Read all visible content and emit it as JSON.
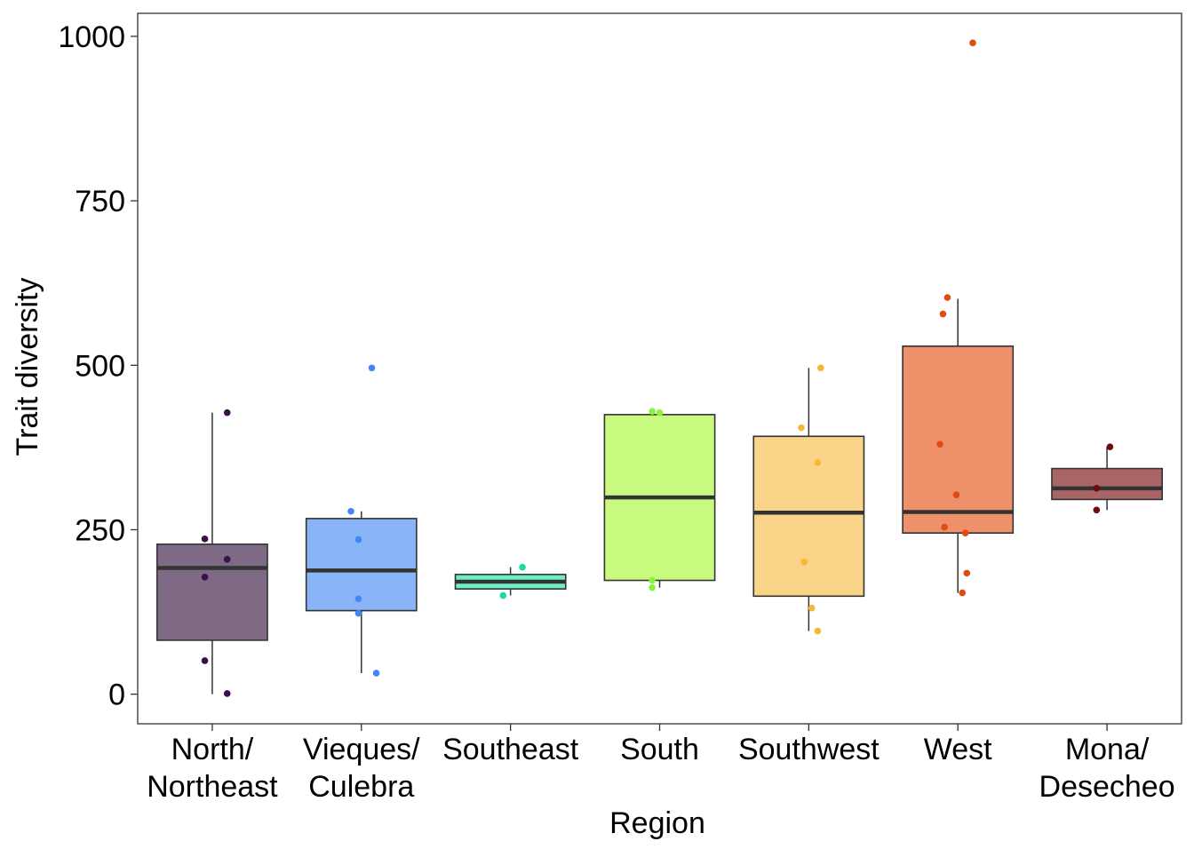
{
  "chart_data": {
    "type": "boxplot",
    "xlabel": "Region",
    "ylabel": "Trait diversity",
    "ylim": [
      -45,
      1035
    ],
    "yticks": [
      0,
      250,
      500,
      750,
      1000
    ],
    "yticks_labels": [
      "0",
      "250",
      "500",
      "750",
      "1000"
    ],
    "grid": false,
    "legend": "none",
    "categories": [
      {
        "label_lines": [
          "North/",
          "Northeast"
        ],
        "fill": "#7E6A85",
        "point_color": "#3B0F4A",
        "whisker_low": 0,
        "q1": 82,
        "median": 192,
        "q3": 228,
        "whisker_high": 428,
        "points": [
          [
            0.1,
            428
          ],
          [
            -0.05,
            236
          ],
          [
            0.1,
            205
          ],
          [
            -0.05,
            178
          ],
          [
            -0.05,
            51
          ],
          [
            0.1,
            1
          ]
        ]
      },
      {
        "label_lines": [
          "Vieques/",
          "Culebra"
        ],
        "fill": "#8AB4F8",
        "point_color": "#4285F4",
        "whisker_low": 32,
        "q1": 127,
        "median": 188,
        "q3": 267,
        "whisker_high": 278,
        "points": [
          [
            0.07,
            496
          ],
          [
            -0.07,
            278
          ],
          [
            -0.02,
            235
          ],
          [
            -0.02,
            145
          ],
          [
            -0.02,
            123
          ],
          [
            0.1,
            32
          ]
        ]
      },
      {
        "label_lines": [
          "Southeast"
        ],
        "fill": "#6FEFC7",
        "point_color": "#1FD8A8",
        "whisker_low": 150,
        "q1": 160,
        "median": 171,
        "q3": 182,
        "whisker_high": 193,
        "points": [
          [
            0.08,
            193
          ],
          [
            -0.05,
            150
          ]
        ]
      },
      {
        "label_lines": [
          "South"
        ],
        "fill": "#C8FA80",
        "point_color": "#8CF23C",
        "whisker_low": 162,
        "q1": 173,
        "median": 299,
        "q3": 425,
        "whisker_high": 428,
        "points": [
          [
            -0.05,
            430
          ],
          [
            0.0,
            428
          ],
          [
            -0.05,
            173
          ],
          [
            -0.05,
            162
          ]
        ]
      },
      {
        "label_lines": [
          "Southwest"
        ],
        "fill": "#FAD589",
        "point_color": "#F7B733",
        "whisker_low": 96,
        "q1": 149,
        "median": 276,
        "q3": 392,
        "whisker_high": 496,
        "points": [
          [
            0.08,
            496
          ],
          [
            -0.05,
            405
          ],
          [
            0.06,
            352
          ],
          [
            -0.03,
            201
          ],
          [
            0.02,
            131
          ],
          [
            0.06,
            96
          ]
        ]
      },
      {
        "label_lines": [
          "West"
        ],
        "fill": "#EE916B",
        "point_color": "#E04B0F",
        "whisker_low": 154,
        "q1": 245,
        "median": 277,
        "q3": 529,
        "whisker_high": 601,
        "points": [
          [
            0.1,
            990
          ],
          [
            -0.07,
            603
          ],
          [
            -0.1,
            578
          ],
          [
            -0.12,
            380
          ],
          [
            -0.01,
            303
          ],
          [
            -0.09,
            254
          ],
          [
            0.05,
            245
          ],
          [
            0.06,
            184
          ],
          [
            0.03,
            154
          ]
        ]
      },
      {
        "label_lines": [
          "Mona/",
          "Desecheo"
        ],
        "fill": "#A96466",
        "point_color": "#6A0D12",
        "whisker_low": 280,
        "q1": 296,
        "median": 313,
        "q3": 343,
        "whisker_high": 376,
        "points": [
          [
            0.02,
            376
          ],
          [
            -0.07,
            313
          ],
          [
            -0.07,
            280
          ]
        ]
      }
    ]
  }
}
